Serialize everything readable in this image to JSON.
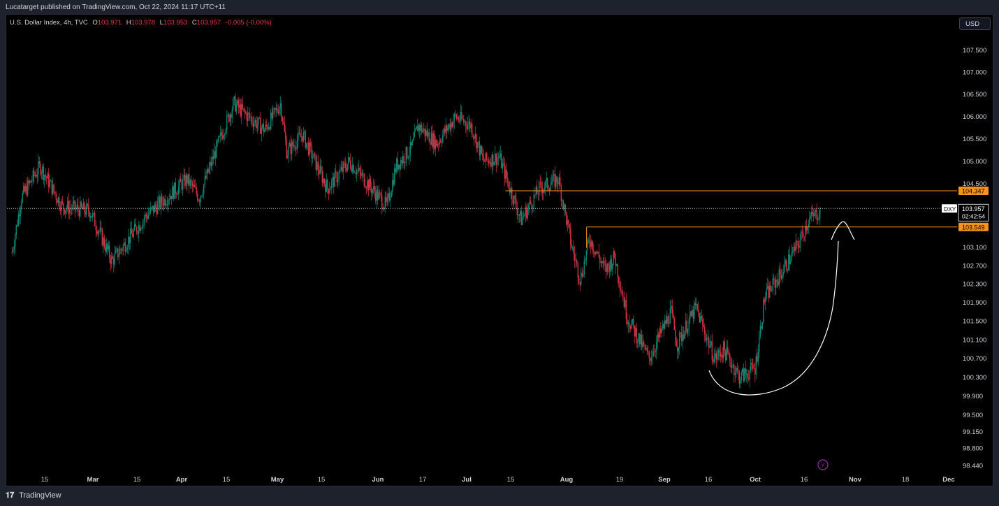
{
  "header": {
    "published": "Lucatarget published on TradingView.com, Oct 22, 2024 11:17 UTC+11"
  },
  "legend": {
    "symbol": "U.S. Dollar Index, 4h, TVC",
    "o_label": "O",
    "o": "103.971",
    "h_label": "H",
    "h": "103.978",
    "l_label": "L",
    "l": "103.953",
    "c_label": "C",
    "c": "103.957",
    "change": "-0.005 (-0.00%)"
  },
  "toolbar": {
    "currency": "USD"
  },
  "footer": {
    "brand": "TradingView",
    "logo_icon": "tradingview-logo-icon"
  },
  "colors": {
    "up": "#089981",
    "down": "#f23645",
    "level": "#f7931a",
    "background": "#000000",
    "text": "#d1d4dc",
    "drawing": "#ffffff"
  },
  "chart_data": {
    "type": "candlestick",
    "symbol": "DXY",
    "timeframe": "4h",
    "price_axis": {
      "ticks": [
        "107.500",
        "107.000",
        "106.500",
        "106.000",
        "105.500",
        "105.000",
        "104.500",
        "103.100",
        "102.700",
        "102.300",
        "101.900",
        "101.500",
        "101.100",
        "100.700",
        "100.300",
        "99.900",
        "99.500",
        "99.150",
        "98.800",
        "98.440"
      ],
      "scale": "log"
    },
    "time_axis": {
      "ticks": [
        "15",
        "Mar",
        "15",
        "Apr",
        "15",
        "May",
        "15",
        "Jun",
        "17",
        "Jul",
        "15",
        "Aug",
        "19",
        "Sep",
        "16",
        "Oct",
        "16",
        "Nov",
        "18",
        "Dec"
      ]
    },
    "last_price": {
      "symbol_label": "DXY",
      "value": "103.957",
      "countdown": "02:42:54"
    },
    "levels": [
      {
        "value": 104.347,
        "label": "104.347",
        "from": "Jul 12"
      },
      {
        "value": 103.549,
        "label": "103.549",
        "from": "Aug 7"
      }
    ],
    "price_path": [
      {
        "date": "Feb 5",
        "price": 103.0
      },
      {
        "date": "Feb 8",
        "price": 104.2
      },
      {
        "date": "Feb 14",
        "price": 104.9
      },
      {
        "date": "Feb 21",
        "price": 104.0
      },
      {
        "date": "Mar 1",
        "price": 103.9
      },
      {
        "date": "Mar 8",
        "price": 102.8
      },
      {
        "date": "Mar 19",
        "price": 103.8
      },
      {
        "date": "Apr 1",
        "price": 104.6
      },
      {
        "date": "Apr 5",
        "price": 104.2
      },
      {
        "date": "Apr 10",
        "price": 105.2
      },
      {
        "date": "Apr 16",
        "price": 106.3
      },
      {
        "date": "Apr 19",
        "price": 106.1
      },
      {
        "date": "Apr 26",
        "price": 105.7
      },
      {
        "date": "May 1",
        "price": 106.3
      },
      {
        "date": "May 3",
        "price": 105.2
      },
      {
        "date": "May 8",
        "price": 105.6
      },
      {
        "date": "May 16",
        "price": 104.4
      },
      {
        "date": "May 23",
        "price": 105.0
      },
      {
        "date": "Jun 4",
        "price": 104.0
      },
      {
        "date": "Jun 7",
        "price": 104.9
      },
      {
        "date": "Jun 12",
        "price": 105.3
      },
      {
        "date": "Jun 14",
        "price": 105.8
      },
      {
        "date": "Jun 20",
        "price": 105.4
      },
      {
        "date": "Jun 26",
        "price": 106.0
      },
      {
        "date": "Jul 1",
        "price": 105.8
      },
      {
        "date": "Jul 5",
        "price": 105.0
      },
      {
        "date": "Jul 10",
        "price": 105.1
      },
      {
        "date": "Jul 17",
        "price": 103.7
      },
      {
        "date": "Jul 23",
        "price": 104.4
      },
      {
        "date": "Jul 29",
        "price": 104.6
      },
      {
        "date": "Aug 2",
        "price": 103.2
      },
      {
        "date": "Aug 5",
        "price": 102.4
      },
      {
        "date": "Aug 8",
        "price": 103.3
      },
      {
        "date": "Aug 13",
        "price": 102.6
      },
      {
        "date": "Aug 16",
        "price": 102.9
      },
      {
        "date": "Aug 20",
        "price": 101.6
      },
      {
        "date": "Aug 27",
        "price": 100.7
      },
      {
        "date": "Sep 3",
        "price": 101.7
      },
      {
        "date": "Sep 5",
        "price": 101.0
      },
      {
        "date": "Sep 11",
        "price": 101.8
      },
      {
        "date": "Sep 17",
        "price": 100.7
      },
      {
        "date": "Sep 20",
        "price": 100.9
      },
      {
        "date": "Sep 25",
        "price": 100.3
      },
      {
        "date": "Sep 30",
        "price": 100.5
      },
      {
        "date": "Oct 3",
        "price": 102.0
      },
      {
        "date": "Oct 8",
        "price": 102.5
      },
      {
        "date": "Oct 14",
        "price": 103.2
      },
      {
        "date": "Oct 17",
        "price": 103.7
      },
      {
        "date": "Oct 21",
        "price": 103.9
      }
    ],
    "annotations": [
      {
        "type": "curve",
        "description": "rounded bottom from mid-Sep to mid-Oct"
      },
      {
        "type": "arrow",
        "description": "upward arrow toward the 103.549 level"
      }
    ],
    "grid": false,
    "legend_position": "top-left"
  },
  "icons": {
    "replay": "lightning-icon"
  }
}
